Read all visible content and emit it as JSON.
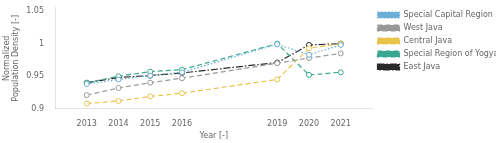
{
  "chart_data": {
    "type": "line",
    "x": [
      2013,
      2014,
      2015,
      2016,
      2019,
      2020,
      2021
    ],
    "series": [
      {
        "name": "Special Capital Region of Jakarta",
        "color": "#6BAED6",
        "line_style": "dotted",
        "marker": "circle",
        "values": [
          0.938,
          0.945,
          0.951,
          0.956,
          0.999,
          0.983,
          0.998
        ]
      },
      {
        "name": "West Java",
        "color": "#999999",
        "line_style": "dashed",
        "marker": "circle",
        "values": [
          0.921,
          0.932,
          0.94,
          0.947,
          0.97,
          0.978,
          0.985
        ]
      },
      {
        "name": "Central Java",
        "color": "#E8C44A",
        "line_style": "dashed",
        "marker": "circle",
        "values": [
          0.908,
          0.912,
          0.919,
          0.924,
          0.945,
          0.993,
          1.0
        ]
      },
      {
        "name": "Special Region of Yogyakarta",
        "color": "#3AA890",
        "line_style": "dashed",
        "marker": "circle",
        "values": [
          0.94,
          0.95,
          0.957,
          0.96,
          1.0,
          0.952,
          0.956
        ]
      },
      {
        "name": "East Java",
        "color": "#2a2a2a",
        "line_style": "dashdot",
        "marker": "circle",
        "values": [
          0.94,
          0.948,
          0.951,
          0.955,
          0.971,
          0.998,
          1.0
        ]
      }
    ],
    "xlabel": "Year [-]",
    "ylabel": "Normalized\nPopulation Density [-]",
    "xlim": [
      2012,
      2022
    ],
    "xticks": [
      2013,
      2014,
      2015,
      2016,
      2019,
      2020,
      2021
    ],
    "ylim": [
      0.9,
      1.055
    ],
    "yticks": [
      0.9,
      0.95,
      1,
      1.05
    ],
    "grid": false,
    "legend": "right"
  }
}
